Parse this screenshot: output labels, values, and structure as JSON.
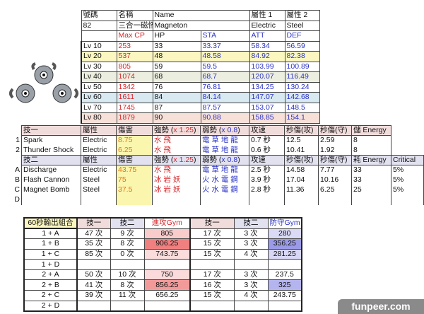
{
  "info": {
    "headers": [
      "號碼",
      "名稱",
      "Name",
      "屬性 1",
      "屬性 2"
    ],
    "number": "82",
    "name_zh": "三合一磁怪",
    "name_en": "Magneton",
    "type1": "Electric",
    "type2": "Steel"
  },
  "stats": {
    "headers": [
      "Max CP",
      "HP",
      "STA",
      "ATT",
      "DEF"
    ],
    "rows": [
      [
        "Lv 10",
        "253",
        "33",
        "33.37",
        "58.34",
        "56.59"
      ],
      [
        "Lv 20",
        "537",
        "48",
        "48.58",
        "84.92",
        "82.38"
      ],
      [
        "Lv 30",
        "805",
        "59",
        "59.5",
        "103.99",
        "100.89"
      ],
      [
        "Lv 40",
        "1074",
        "68",
        "68.7",
        "120.07",
        "116.49"
      ],
      [
        "Lv 50",
        "1342",
        "76",
        "76.81",
        "134.25",
        "130.24"
      ],
      [
        "Lv 60",
        "1611",
        "84",
        "84.14",
        "147.07",
        "142.68"
      ],
      [
        "Lv 70",
        "1745",
        "87",
        "87.57",
        "153.07",
        "148.5"
      ],
      [
        "Lv 80",
        "1879",
        "90",
        "90.88",
        "158.85",
        "154.1"
      ]
    ]
  },
  "fast": {
    "headers": [
      "技一",
      "屬性",
      "傷害",
      "強勢 (",
      "x 1.25",
      ")",
      "弱勢 (",
      "x 0.8",
      ")",
      "攻速",
      "秒傷(攻)",
      "秒傷(守)",
      "儲 Energy"
    ],
    "rows": [
      [
        "1",
        "Spark",
        "Electric",
        "8.75",
        "水 飛",
        "電 草 地 龍",
        "0.7 秒",
        "12.5",
        "2.59",
        "8"
      ],
      [
        "2",
        "Thunder Shock",
        "Electric",
        "6.25",
        "水 飛",
        "電 草 地 龍",
        "0.6 秒",
        "10.41",
        "1.92",
        "8"
      ]
    ]
  },
  "charge": {
    "headers": [
      "技二",
      "屬性",
      "傷害",
      "強勢 (",
      "x 1.25",
      ")",
      "弱勢 (",
      "x 0.8",
      ")",
      "攻速",
      "秒傷(攻)",
      "秒傷(守)",
      "耗 Energy",
      "Critical"
    ],
    "rows": [
      [
        "A",
        "Discharge",
        "Electric",
        "43.75",
        "水 飛",
        "電 草 地 龍",
        "2.5 秒",
        "14.58",
        "7.77",
        "33",
        "5%"
      ],
      [
        "B",
        "Flash Cannon",
        "Steel",
        "75",
        "冰 岩 妖",
        "火 水 電 鋼",
        "3.9 秒",
        "17.04",
        "10.16",
        "33",
        "5%"
      ],
      [
        "C",
        "Magnet Bomb",
        "Steel",
        "37.5",
        "冰 岩 妖",
        "火 水 電 鋼",
        "2.8 秒",
        "11.36",
        "6.25",
        "25",
        "5%"
      ],
      [
        "D",
        "",
        "",
        "",
        "",
        "",
        "",
        "",
        "",
        "",
        ""
      ]
    ]
  },
  "combo": {
    "headers": [
      "60秒輸出組合",
      "技一",
      "技二",
      "進攻Gym",
      "技一",
      "技二",
      "防守Gym"
    ],
    "rows": [
      [
        "1 + A",
        "47 次",
        "9 次",
        "805",
        "17 次",
        "3 次",
        "280"
      ],
      [
        "1 + B",
        "35 次",
        "8 次",
        "906.25",
        "15 次",
        "3 次",
        "356.25"
      ],
      [
        "1 + C",
        "85 次",
        "0 次",
        "743.75",
        "15 次",
        "4 次",
        "281.25"
      ],
      [
        "1 + D",
        "",
        "",
        "",
        "",
        "",
        ""
      ],
      [
        "2 + A",
        "50 次",
        "10 次",
        "750",
        "17 次",
        "3 次",
        "237.5"
      ],
      [
        "2 + B",
        "41 次",
        "8 次",
        "856.25",
        "16 次",
        "3 次",
        "325"
      ],
      [
        "2 + C",
        "39 次",
        "11 次",
        "656.25",
        "15 次",
        "4 次",
        "243.75"
      ],
      [
        "2 + D",
        "",
        "",
        "",
        "",
        "",
        ""
      ]
    ]
  },
  "heat": {
    "atk": [
      "#f9cccc",
      "#f08080",
      "#fadcdc",
      "",
      "#fadada",
      "#f29a9a",
      "",
      ""
    ],
    "def": [
      "#dadaf6",
      "#9a9ae6",
      "#d8d8f6",
      "",
      "",
      "#b4b4ee",
      "",
      ""
    ]
  },
  "watermark": "funpeer.com"
}
